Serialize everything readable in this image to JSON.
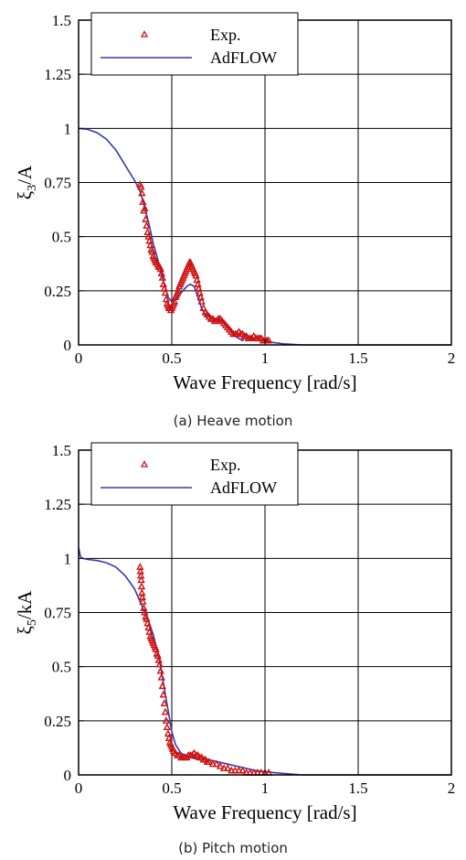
{
  "chart_data": [
    {
      "type": "line",
      "title": "",
      "xlabel": "Wave Frequency [rad/s]",
      "ylabel_main": "ξ",
      "ylabel_sub": "3",
      "ylabel_rest": "/A",
      "xlim": [
        0,
        2
      ],
      "ylim": [
        0,
        1.5
      ],
      "xticks": [
        0,
        0.5,
        1,
        1.5,
        2
      ],
      "xtick_labels": [
        "0",
        "0.5",
        "1",
        "1.5",
        "2"
      ],
      "yticks": [
        0,
        0.25,
        0.5,
        0.75,
        1,
        1.25,
        1.5
      ],
      "ytick_labels": [
        "0",
        "0.25",
        "0.5",
        "0.75",
        "1",
        "1.25",
        "1.5"
      ],
      "grid": true,
      "legend_position": "top-left",
      "caption": "(a) Heave motion",
      "series": [
        {
          "name": "Exp.",
          "style": "triangle-markers",
          "color": "#cc1111",
          "x": [
            0.33,
            0.335,
            0.34,
            0.345,
            0.35,
            0.355,
            0.36,
            0.365,
            0.37,
            0.375,
            0.38,
            0.385,
            0.39,
            0.395,
            0.4,
            0.405,
            0.41,
            0.415,
            0.42,
            0.425,
            0.43,
            0.435,
            0.44,
            0.445,
            0.45,
            0.455,
            0.46,
            0.465,
            0.47,
            0.475,
            0.48,
            0.485,
            0.49,
            0.495,
            0.5,
            0.505,
            0.51,
            0.515,
            0.52,
            0.525,
            0.53,
            0.535,
            0.54,
            0.545,
            0.55,
            0.555,
            0.56,
            0.565,
            0.57,
            0.575,
            0.58,
            0.585,
            0.59,
            0.595,
            0.6,
            0.605,
            0.61,
            0.615,
            0.62,
            0.625,
            0.63,
            0.635,
            0.64,
            0.645,
            0.65,
            0.655,
            0.66,
            0.67,
            0.68,
            0.69,
            0.7,
            0.71,
            0.72,
            0.73,
            0.74,
            0.75,
            0.76,
            0.77,
            0.78,
            0.79,
            0.8,
            0.81,
            0.82,
            0.83,
            0.84,
            0.85,
            0.86,
            0.87,
            0.88,
            0.89,
            0.9,
            0.91,
            0.92,
            0.93,
            0.94,
            0.95,
            0.96,
            0.97,
            0.98,
            0.99,
            1.0,
            1.01,
            1.02
          ],
          "y": [
            0.74,
            0.73,
            0.7,
            0.66,
            0.62,
            0.63,
            0.58,
            0.55,
            0.52,
            0.5,
            0.48,
            0.46,
            0.44,
            0.43,
            0.41,
            0.4,
            0.39,
            0.38,
            0.38,
            0.37,
            0.36,
            0.36,
            0.35,
            0.33,
            0.31,
            0.28,
            0.26,
            0.24,
            0.21,
            0.19,
            0.18,
            0.17,
            0.17,
            0.16,
            0.17,
            0.18,
            0.19,
            0.2,
            0.22,
            0.23,
            0.24,
            0.25,
            0.27,
            0.28,
            0.29,
            0.3,
            0.31,
            0.32,
            0.33,
            0.34,
            0.35,
            0.36,
            0.37,
            0.38,
            0.38,
            0.37,
            0.36,
            0.35,
            0.34,
            0.33,
            0.32,
            0.3,
            0.28,
            0.26,
            0.24,
            0.22,
            0.2,
            0.17,
            0.15,
            0.14,
            0.13,
            0.12,
            0.12,
            0.11,
            0.11,
            0.12,
            0.12,
            0.11,
            0.1,
            0.09,
            0.08,
            0.07,
            0.06,
            0.05,
            0.05,
            0.05,
            0.06,
            0.05,
            0.05,
            0.04,
            0.04,
            0.03,
            0.03,
            0.03,
            0.04,
            0.03,
            0.03,
            0.03,
            0.03,
            0.02,
            0.02,
            0.02,
            0.02
          ]
        },
        {
          "name": "AdFLOW",
          "style": "line",
          "color": "#3838b0",
          "x": [
            0,
            0.05,
            0.1,
            0.15,
            0.2,
            0.25,
            0.3,
            0.33,
            0.35,
            0.38,
            0.4,
            0.42,
            0.45,
            0.48,
            0.5,
            0.52,
            0.55,
            0.58,
            0.6,
            0.62,
            0.64,
            0.66,
            0.68,
            0.7,
            0.72,
            0.75,
            0.78,
            0.8,
            0.82,
            0.84,
            0.86,
            0.88,
            0.9,
            0.92,
            0.95,
            1.0,
            1.05,
            1.1,
            1.2,
            1.4,
            1.6,
            1.8,
            2.0
          ],
          "y": [
            1.0,
            0.995,
            0.98,
            0.95,
            0.9,
            0.83,
            0.76,
            0.71,
            0.65,
            0.55,
            0.47,
            0.41,
            0.31,
            0.22,
            0.2,
            0.21,
            0.24,
            0.27,
            0.28,
            0.27,
            0.22,
            0.17,
            0.14,
            0.13,
            0.12,
            0.12,
            0.1,
            0.08,
            0.06,
            0.04,
            0.03,
            0.02,
            0.05,
            0.03,
            0.02,
            0.02,
            0.01,
            0.005,
            0.0,
            0.0,
            0.0,
            0.0,
            0.0
          ]
        }
      ]
    },
    {
      "type": "line",
      "title": "",
      "xlabel": "Wave Frequency [rad/s]",
      "ylabel_main": "ξ",
      "ylabel_sub": "5",
      "ylabel_rest": "/kA",
      "xlim": [
        0,
        2
      ],
      "ylim": [
        0,
        1.5
      ],
      "xticks": [
        0,
        0.5,
        1,
        1.5,
        2
      ],
      "xtick_labels": [
        "0",
        "0.5",
        "1",
        "1.5",
        "2"
      ],
      "yticks": [
        0,
        0.25,
        0.5,
        0.75,
        1,
        1.25,
        1.5
      ],
      "ytick_labels": [
        "0",
        "0.25",
        "0.5",
        "0.75",
        "1",
        "1.25",
        "1.5"
      ],
      "grid": true,
      "legend_position": "top-left",
      "caption": "(b) Pitch motion",
      "series": [
        {
          "name": "Exp.",
          "style": "triangle-markers",
          "color": "#cc1111",
          "x": [
            0.33,
            0.332,
            0.334,
            0.336,
            0.338,
            0.34,
            0.342,
            0.345,
            0.35,
            0.355,
            0.36,
            0.365,
            0.37,
            0.375,
            0.38,
            0.385,
            0.39,
            0.395,
            0.4,
            0.405,
            0.41,
            0.415,
            0.42,
            0.425,
            0.43,
            0.435,
            0.44,
            0.445,
            0.45,
            0.455,
            0.46,
            0.465,
            0.47,
            0.475,
            0.48,
            0.485,
            0.49,
            0.495,
            0.5,
            0.505,
            0.51,
            0.52,
            0.53,
            0.54,
            0.55,
            0.56,
            0.57,
            0.58,
            0.59,
            0.6,
            0.61,
            0.62,
            0.63,
            0.64,
            0.65,
            0.66,
            0.67,
            0.68,
            0.69,
            0.7,
            0.72,
            0.74,
            0.76,
            0.78,
            0.8,
            0.82,
            0.84,
            0.86,
            0.88,
            0.9,
            0.92,
            0.94,
            0.96,
            0.98,
            1.0,
            1.02
          ],
          "y": [
            0.96,
            0.94,
            0.92,
            0.9,
            0.87,
            0.84,
            0.82,
            0.8,
            0.77,
            0.75,
            0.73,
            0.72,
            0.7,
            0.68,
            0.66,
            0.64,
            0.63,
            0.62,
            0.61,
            0.6,
            0.59,
            0.58,
            0.56,
            0.55,
            0.53,
            0.51,
            0.48,
            0.45,
            0.41,
            0.37,
            0.33,
            0.29,
            0.25,
            0.22,
            0.19,
            0.17,
            0.15,
            0.14,
            0.13,
            0.12,
            0.11,
            0.1,
            0.09,
            0.09,
            0.08,
            0.08,
            0.08,
            0.08,
            0.09,
            0.09,
            0.09,
            0.1,
            0.09,
            0.09,
            0.08,
            0.08,
            0.07,
            0.07,
            0.06,
            0.06,
            0.05,
            0.05,
            0.04,
            0.03,
            0.03,
            0.02,
            0.02,
            0.02,
            0.02,
            0.01,
            0.01,
            0.01,
            0.01,
            0.01,
            0.01,
            0.01
          ]
        },
        {
          "name": "AdFLOW",
          "style": "line",
          "color": "#3838b0",
          "x": [
            0,
            0.005,
            0.01,
            0.02,
            0.05,
            0.1,
            0.15,
            0.2,
            0.25,
            0.3,
            0.33,
            0.35,
            0.38,
            0.4,
            0.42,
            0.44,
            0.46,
            0.48,
            0.5,
            0.52,
            0.55,
            0.6,
            0.65,
            0.7,
            0.75,
            0.8,
            0.85,
            0.9,
            0.95,
            1.0,
            1.05,
            1.2,
            1.5,
            2.0
          ],
          "y": [
            1.05,
            1.03,
            1.01,
            1.0,
            0.995,
            0.99,
            0.98,
            0.96,
            0.92,
            0.86,
            0.8,
            0.76,
            0.7,
            0.65,
            0.58,
            0.5,
            0.4,
            0.3,
            0.2,
            0.14,
            0.1,
            0.08,
            0.07,
            0.07,
            0.06,
            0.05,
            0.04,
            0.03,
            0.02,
            0.015,
            0.01,
            0.0,
            0.0,
            0.0
          ]
        }
      ]
    }
  ]
}
